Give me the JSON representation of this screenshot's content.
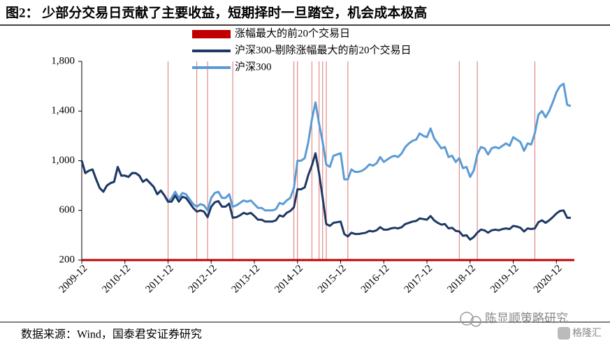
{
  "chart_data": {
    "type": "line",
    "title": "图2： 少部分交易日贡献了主要收益，短期择时一旦踏空，机会成本极高",
    "source": "数据来源：Wind，国泰君安证券研究",
    "watermark": [
      "陈显顺策略研究",
      "格隆汇"
    ],
    "legend": "top",
    "x": [
      "2009-12",
      "2010-01",
      "2010-02",
      "2010-03",
      "2010-04",
      "2010-05",
      "2010-06",
      "2010-07",
      "2010-08",
      "2010-09",
      "2010-10",
      "2010-11",
      "2010-12",
      "2011-01",
      "2011-02",
      "2011-03",
      "2011-04",
      "2011-05",
      "2011-06",
      "2011-07",
      "2011-08",
      "2011-09",
      "2011-10",
      "2011-11",
      "2011-12",
      "2012-01",
      "2012-02",
      "2012-03",
      "2012-04",
      "2012-05",
      "2012-06",
      "2012-07",
      "2012-08",
      "2012-09",
      "2012-10",
      "2012-11",
      "2012-12",
      "2013-01",
      "2013-02",
      "2013-03",
      "2013-04",
      "2013-05",
      "2013-06",
      "2013-07",
      "2013-08",
      "2013-09",
      "2013-10",
      "2013-11",
      "2013-12",
      "2014-01",
      "2014-02",
      "2014-03",
      "2014-04",
      "2014-05",
      "2014-06",
      "2014-07",
      "2014-08",
      "2014-09",
      "2014-10",
      "2014-11",
      "2014-12",
      "2015-01",
      "2015-02",
      "2015-03",
      "2015-04",
      "2015-05",
      "2015-06",
      "2015-07",
      "2015-08",
      "2015-09",
      "2015-10",
      "2015-11",
      "2015-12",
      "2016-01",
      "2016-02",
      "2016-03",
      "2016-04",
      "2016-05",
      "2016-06",
      "2016-07",
      "2016-08",
      "2016-09",
      "2016-10",
      "2016-11",
      "2016-12",
      "2017-01",
      "2017-02",
      "2017-03",
      "2017-04",
      "2017-05",
      "2017-06",
      "2017-07",
      "2017-08",
      "2017-09",
      "2017-10",
      "2017-11",
      "2017-12",
      "2018-01",
      "2018-02",
      "2018-03",
      "2018-04",
      "2018-05",
      "2018-06",
      "2018-07",
      "2018-08",
      "2018-09",
      "2018-10",
      "2018-11",
      "2018-12",
      "2019-01",
      "2019-02",
      "2019-03",
      "2019-04",
      "2019-05",
      "2019-06",
      "2019-07",
      "2019-08",
      "2019-09",
      "2019-10",
      "2019-11",
      "2019-12",
      "2020-01",
      "2020-02",
      "2020-03",
      "2020-04",
      "2020-05",
      "2020-06",
      "2020-07",
      "2020-08",
      "2020-09",
      "2020-10",
      "2020-11",
      "2020-12",
      "2021-01",
      "2021-02",
      "2021-03",
      "2021-04"
    ],
    "series": [
      {
        "name": "涨幅最大的前20个交易日",
        "type": "bar",
        "color": "#c00000",
        "x": [
          "2011-12",
          "2012-08",
          "2012-11",
          "2013-06",
          "2014-11",
          "2014-12",
          "2015-04",
          "2015-06",
          "2015-07",
          "2015-08",
          "2016-02",
          "2018-09",
          "2019-02",
          "2020-06"
        ]
      },
      {
        "name": "沪深300-剔除涨幅最大的前20个交易日",
        "type": "line",
        "color": "#1f3864",
        "values": [
          1000,
          900,
          920,
          930,
          850,
          780,
          750,
          800,
          820,
          830,
          950,
          880,
          880,
          870,
          900,
          900,
          880,
          830,
          850,
          820,
          790,
          730,
          760,
          720,
          670,
          670,
          720,
          670,
          710,
          700,
          660,
          620,
          590,
          600,
          590,
          545,
          630,
          665,
          675,
          630,
          630,
          655,
          540,
          545,
          560,
          580,
          570,
          580,
          555,
          525,
          525,
          510,
          510,
          510,
          520,
          560,
          550,
          580,
          595,
          625,
          770,
          770,
          785,
          885,
          960,
          1060,
          900,
          700,
          490,
          475,
          500,
          505,
          510,
          410,
          390,
          420,
          410,
          410,
          415,
          420,
          435,
          430,
          440,
          465,
          445,
          445,
          455,
          460,
          455,
          465,
          490,
          500,
          510,
          515,
          535,
          530,
          525,
          555,
          520,
          500,
          485,
          490,
          455,
          460,
          435,
          430,
          395,
          400,
          365,
          385,
          420,
          445,
          440,
          420,
          440,
          445,
          440,
          450,
          455,
          450,
          475,
          470,
          460,
          430,
          455,
          450,
          455,
          505,
          520,
          500,
          520,
          545,
          575,
          595,
          600,
          540,
          540
        ]
      },
      {
        "name": "沪深300",
        "type": "line",
        "color": "#5b9bd5",
        "values": [
          1000,
          900,
          920,
          930,
          850,
          780,
          750,
          800,
          820,
          830,
          950,
          880,
          880,
          870,
          900,
          900,
          880,
          830,
          850,
          820,
          790,
          730,
          760,
          720,
          670,
          700,
          750,
          700,
          740,
          730,
          690,
          650,
          630,
          650,
          640,
          600,
          700,
          740,
          750,
          700,
          700,
          730,
          630,
          640,
          660,
          680,
          670,
          680,
          650,
          620,
          620,
          600,
          600,
          600,
          610,
          660,
          650,
          680,
          700,
          780,
          1000,
          1000,
          1020,
          1150,
          1330,
          1470,
          1300,
          1150,
          970,
          950,
          1040,
          1050,
          1060,
          850,
          850,
          930,
          910,
          910,
          920,
          940,
          970,
          960,
          980,
          1030,
          990,
          1010,
          1030,
          1040,
          1030,
          1060,
          1110,
          1140,
          1160,
          1170,
          1220,
          1200,
          1190,
          1260,
          1180,
          1140,
          1100,
          1110,
          1030,
          1040,
          990,
          1020,
          940,
          950,
          870,
          920,
          1050,
          1110,
          1100,
          1050,
          1100,
          1110,
          1100,
          1120,
          1140,
          1120,
          1190,
          1170,
          1150,
          1080,
          1140,
          1130,
          1220,
          1370,
          1400,
          1350,
          1400,
          1470,
          1550,
          1600,
          1620,
          1450,
          1440
        ]
      }
    ],
    "xlim": [
      "2009-12",
      "2021-05"
    ],
    "xticks": [
      "2009-12",
      "2010-12",
      "2011-12",
      "2012-12",
      "2013-12",
      "2014-12",
      "2015-12",
      "2016-12",
      "2017-12",
      "2018-12",
      "2019-12",
      "2020-12"
    ],
    "ylim": [
      200,
      1800
    ],
    "yticks": [
      200,
      600,
      {
        "value": 1000,
        "label": "1,000"
      },
      {
        "value": 1400,
        "label": "1,400"
      },
      {
        "value": 1800,
        "label": "1,800"
      }
    ]
  }
}
